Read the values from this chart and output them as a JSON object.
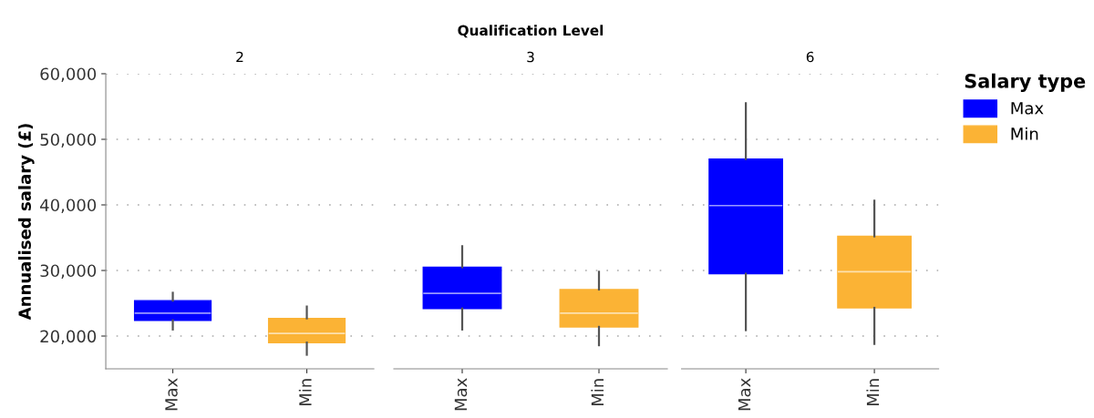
{
  "chart_data": [
    {
      "type": "box",
      "subtitle": "2",
      "ylabel": "Annualised salary (£)",
      "categories": [
        "Max",
        "Min"
      ],
      "series": [
        {
          "name": "Max",
          "color": "#0000ff",
          "boxes": [
            {
              "low": 21000,
              "q1": 22400,
              "median": 23500,
              "q3": 25400,
              "high": 26600
            },
            null
          ]
        },
        {
          "name": "Min",
          "color": "#fbb335",
          "boxes": [
            null,
            {
              "low": 17150,
              "q1": 19000,
              "median": 20400,
              "q3": 22700,
              "high": 24500
            }
          ]
        }
      ],
      "ylim": [
        15000,
        60000
      ],
      "yticks": [
        {
          "value": 20000,
          "label": "20,000"
        },
        {
          "value": 30000,
          "label": "30,000"
        },
        {
          "value": 40000,
          "label": "40,000"
        },
        {
          "value": 50000,
          "label": "50,000"
        },
        {
          "value": 60000,
          "label": "60,000"
        }
      ],
      "grid": "y",
      "legend": "right",
      "legend_title": "Salary type"
    },
    {
      "type": "box",
      "title": "Qualification Level",
      "subtitle": "3",
      "categories": [
        "Max",
        "Min"
      ],
      "colors": [
        "#0000ff",
        "#fbb335"
      ],
      "boxes": [
        {
          "low": 21000,
          "q1": 24200,
          "median": 26500,
          "q3": 30500,
          "high": 33700
        },
        {
          "low": 18600,
          "q1": 21400,
          "median": 23500,
          "q3": 27100,
          "high": 29800
        }
      ],
      "ylim": [
        15000,
        60000
      ],
      "tick_labels": "x",
      "grid": "y"
    },
    {
      "type": "box",
      "subtitle": "6",
      "categories": [
        "Max",
        "Min"
      ],
      "colors": [
        "#0000ff",
        "#fbb335"
      ],
      "boxes": [
        {
          "low": 20900,
          "q1": 29500,
          "median": 39900,
          "q3": 47000,
          "high": 55500
        },
        {
          "low": 18800,
          "q1": 24300,
          "median": 29800,
          "q3": 35200,
          "high": 40650
        }
      ],
      "ylim": [
        15000,
        60000
      ],
      "tick_labels": "x",
      "grid": "y"
    }
  ]
}
